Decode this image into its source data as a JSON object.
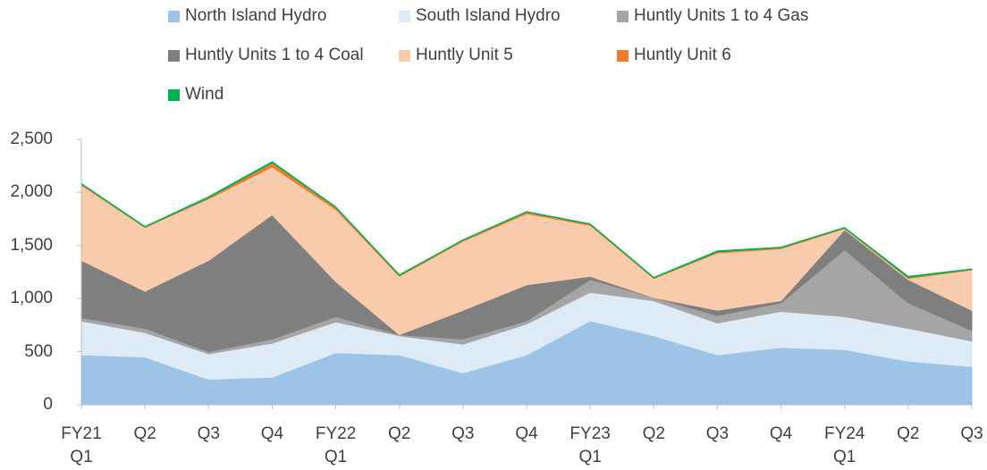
{
  "chart_data": {
    "type": "stacked_area",
    "categories": [
      "FY21 Q1",
      "Q2",
      "Q3",
      "Q4",
      "FY22 Q1",
      "Q2",
      "Q3",
      "Q4",
      "FY23 Q1",
      "Q2",
      "Q3",
      "Q4",
      "FY24 Q1",
      "Q2",
      "Q3"
    ],
    "series": [
      {
        "name": "North Island Hydro",
        "color": "#9dc3e6",
        "values": [
          470,
          450,
          240,
          260,
          490,
          470,
          300,
          470,
          790,
          650,
          470,
          540,
          520,
          410,
          360
        ]
      },
      {
        "name": "South Island Hydro",
        "color": "#deebf7",
        "values": [
          320,
          230,
          240,
          320,
          290,
          180,
          270,
          290,
          270,
          330,
          300,
          340,
          310,
          310,
          240
        ]
      },
      {
        "name": "Huntly Units 1 to 4 Gas",
        "color": "#a5a5a5",
        "values": [
          30,
          40,
          20,
          40,
          50,
          10,
          50,
          30,
          120,
          30,
          70,
          80,
          630,
          240,
          100
        ]
      },
      {
        "name": "Huntly Units 1 to 4 Coal",
        "color": "#7f7f7f",
        "values": [
          540,
          350,
          860,
          1170,
          330,
          0,
          270,
          340,
          30,
          0,
          50,
          20,
          190,
          220,
          190
        ]
      },
      {
        "name": "Huntly Unit 5",
        "color": "#f8cbad",
        "values": [
          710,
          600,
          580,
          450,
          680,
          550,
          650,
          670,
          480,
          180,
          540,
          490,
          10,
          10,
          380
        ]
      },
      {
        "name": "Huntly Unit 6",
        "color": "#ed7d31",
        "values": [
          10,
          5,
          10,
          40,
          20,
          10,
          10,
          15,
          10,
          5,
          10,
          10,
          5,
          10,
          5
        ]
      },
      {
        "name": "Wind",
        "color": "#00b050",
        "values": [
          5,
          5,
          10,
          10,
          5,
          5,
          5,
          5,
          5,
          5,
          10,
          5,
          5,
          10,
          5
        ]
      }
    ],
    "ylim": [
      0,
      2500
    ],
    "yticks": [
      0,
      500,
      {
        "value": 1000,
        "label": "1,000"
      },
      {
        "value": 1500,
        "label": "1,500"
      },
      {
        "value": 2000,
        "label": "2,000"
      },
      {
        "value": 2500,
        "label": "2,500"
      }
    ],
    "legend": "top"
  }
}
